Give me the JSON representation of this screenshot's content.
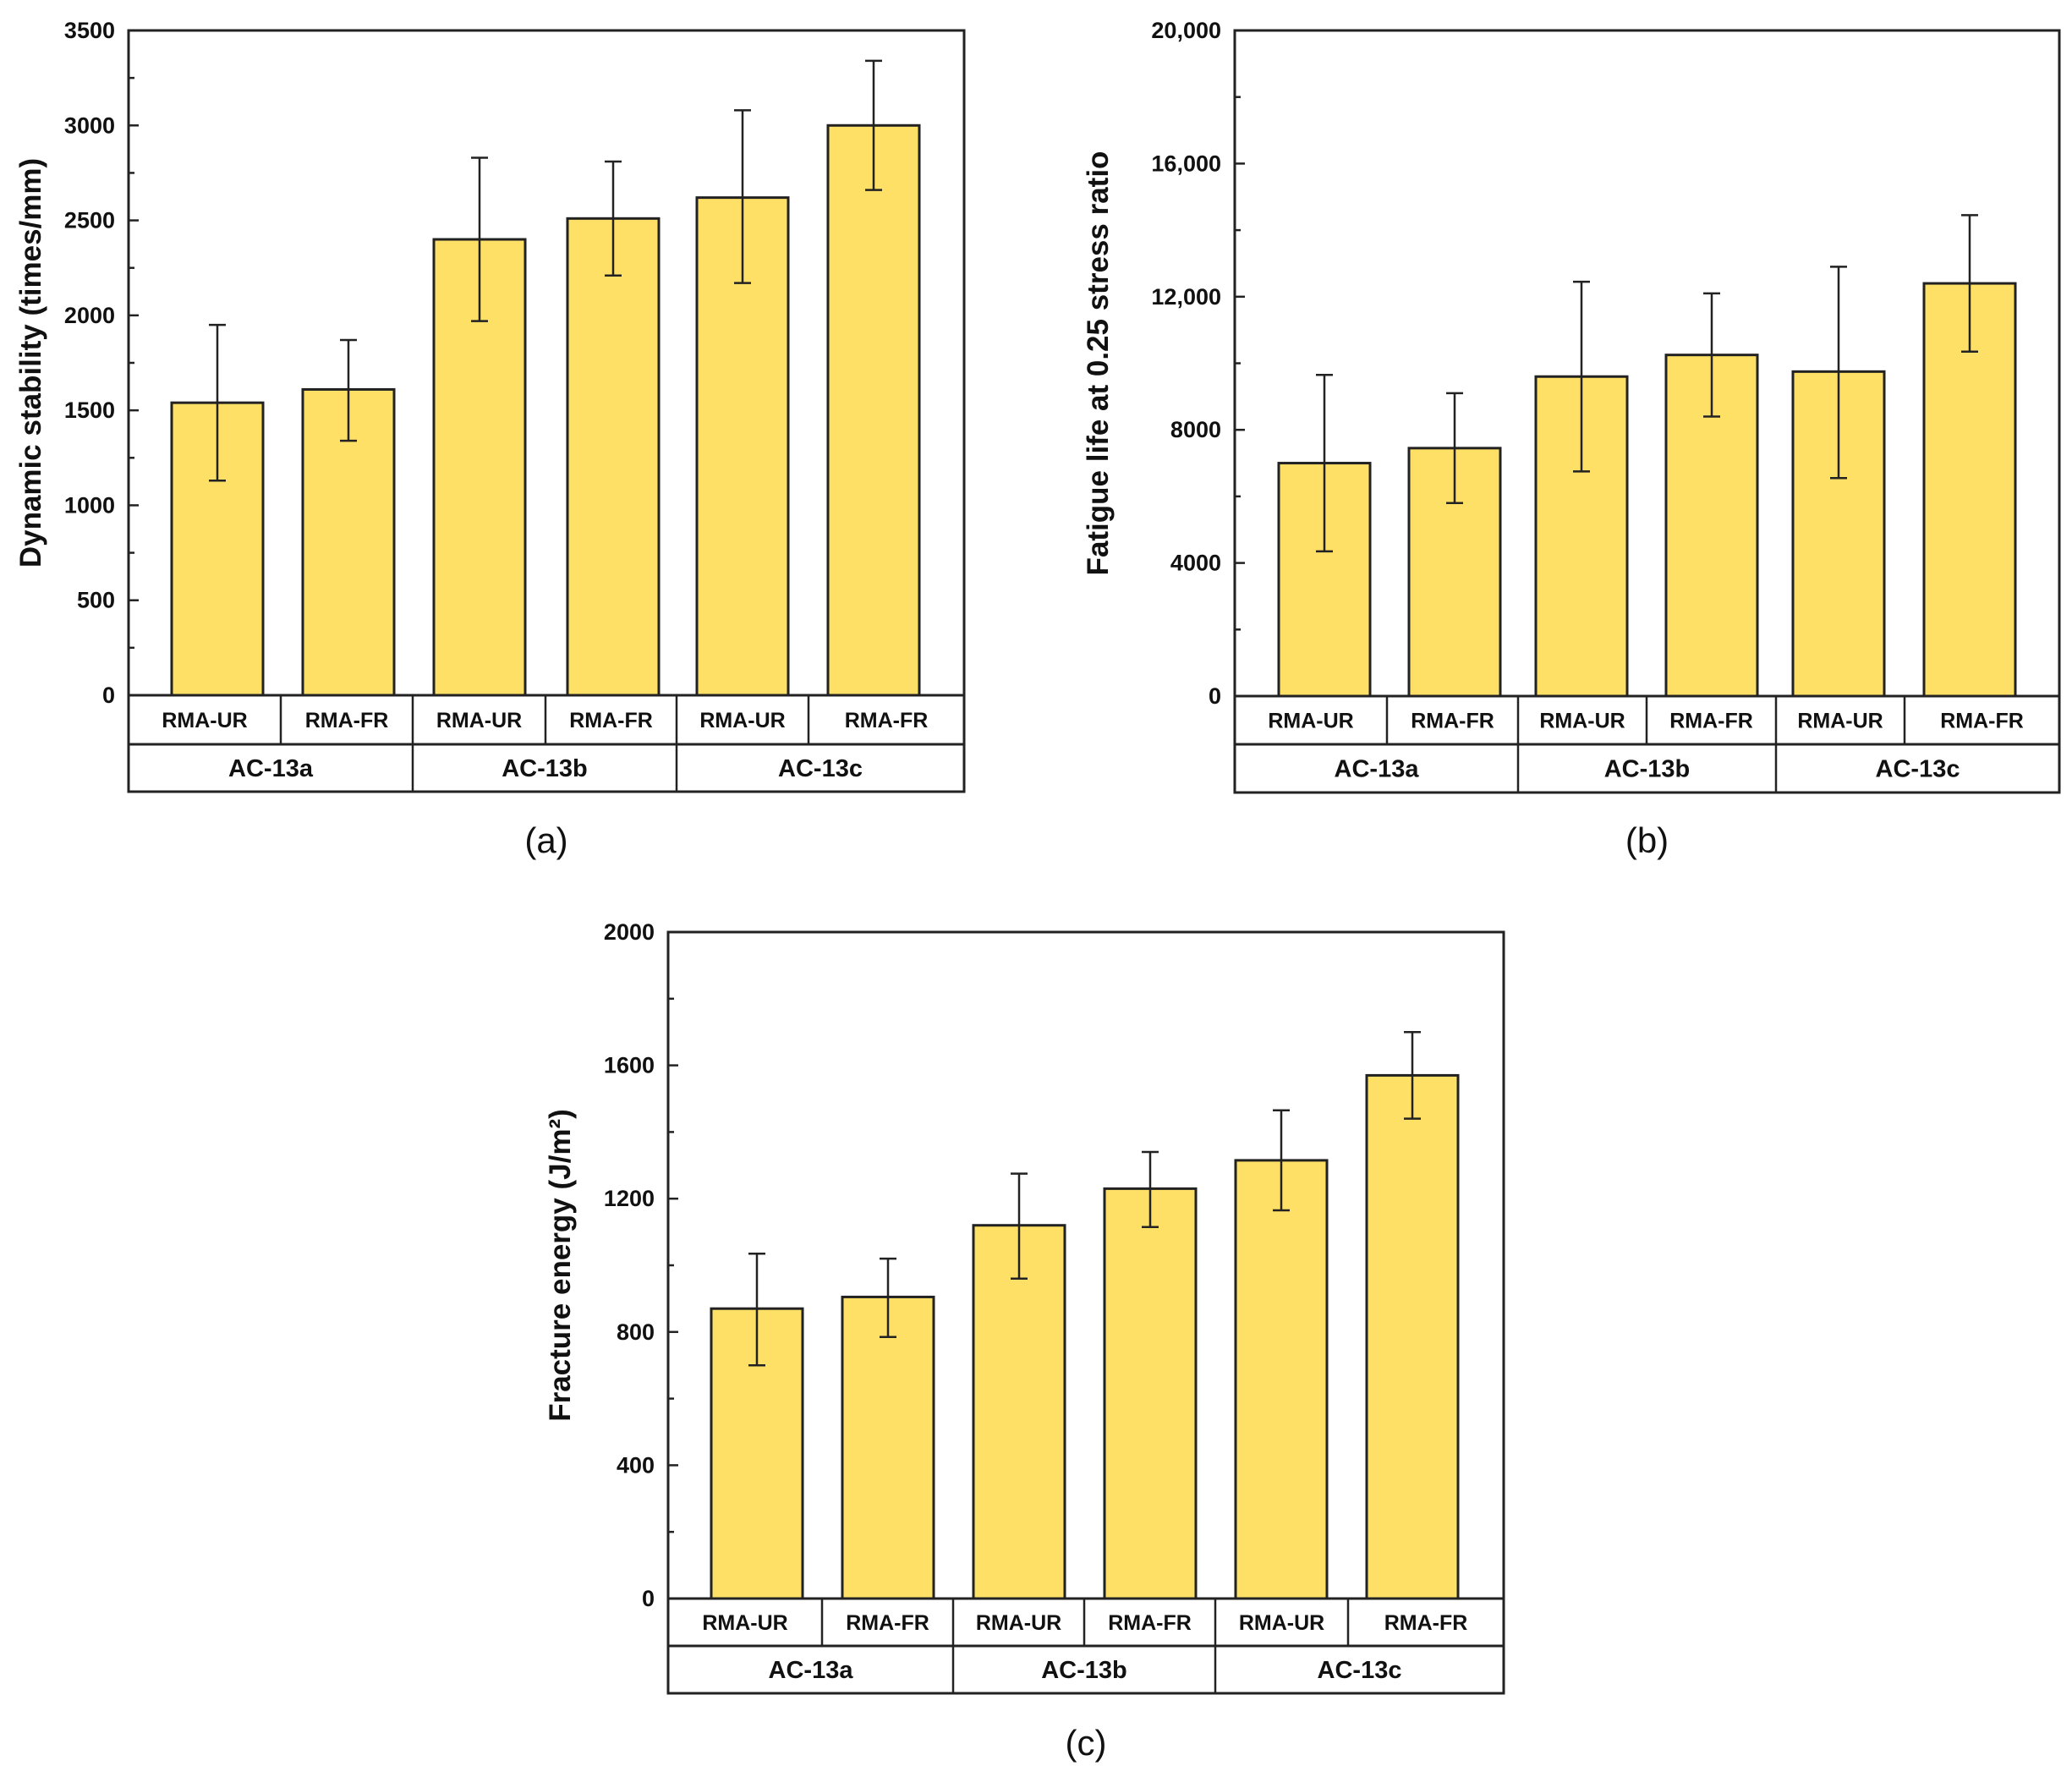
{
  "chart_data": [
    {
      "type": "bar",
      "panel": "(a)",
      "ylabel": "Dynamic stability  (times/mm)",
      "ylim": [
        0,
        3500
      ],
      "yticks": [
        0,
        500,
        1000,
        1500,
        2000,
        2500,
        3000,
        3500
      ],
      "ytick_labels": [
        "0",
        "500",
        "1000",
        "1500",
        "2000",
        "2500",
        "3000",
        "3500"
      ],
      "categories": [
        "RMA-UR",
        "RMA-FR",
        "RMA-UR",
        "RMA-FR",
        "RMA-UR",
        "RMA-FR"
      ],
      "groups": [
        "AC-13a",
        "AC-13b",
        "AC-13c"
      ],
      "values": [
        1540,
        1610,
        2400,
        2510,
        2620,
        3000
      ],
      "error_low": [
        1130,
        1340,
        1970,
        2210,
        2170,
        2660
      ],
      "error_high": [
        1950,
        1870,
        2830,
        2810,
        3080,
        3340
      ],
      "bar_color": "#ffe066"
    },
    {
      "type": "bar",
      "panel": "(b)",
      "ylabel": "Fatigue life at 0.25 stress ratio",
      "ylim": [
        0,
        20000
      ],
      "yticks": [
        0,
        4000,
        8000,
        12000,
        16000,
        20000
      ],
      "ytick_labels": [
        "0",
        "4000",
        "8000",
        "12,000",
        "16,000",
        "20,000"
      ],
      "categories": [
        "RMA-UR",
        "RMA-FR",
        "RMA-UR",
        "RMA-FR",
        "RMA-UR",
        "RMA-FR"
      ],
      "groups": [
        "AC-13a",
        "AC-13b",
        "AC-13c"
      ],
      "values": [
        7000,
        7450,
        9600,
        10250,
        9750,
        12400
      ],
      "error_low": [
        4350,
        5800,
        6750,
        8400,
        6550,
        10350
      ],
      "error_high": [
        9650,
        9100,
        12450,
        12100,
        12900,
        14450
      ],
      "bar_color": "#ffe066"
    },
    {
      "type": "bar",
      "panel": "(c)",
      "ylabel": "Fracture energy (J/m²)",
      "ylim": [
        0,
        2000
      ],
      "yticks": [
        0,
        400,
        800,
        1200,
        1600,
        2000
      ],
      "ytick_labels": [
        "0",
        "400",
        "800",
        "1200",
        "1600",
        "2000"
      ],
      "categories": [
        "RMA-UR",
        "RMA-FR",
        "RMA-UR",
        "RMA-FR",
        "RMA-UR",
        "RMA-FR"
      ],
      "groups": [
        "AC-13a",
        "AC-13b",
        "AC-13c"
      ],
      "values": [
        870,
        905,
        1120,
        1230,
        1315,
        1570
      ],
      "error_low": [
        700,
        785,
        960,
        1115,
        1165,
        1440
      ],
      "error_high": [
        1035,
        1020,
        1275,
        1340,
        1465,
        1700
      ],
      "bar_color": "#ffe066"
    }
  ]
}
